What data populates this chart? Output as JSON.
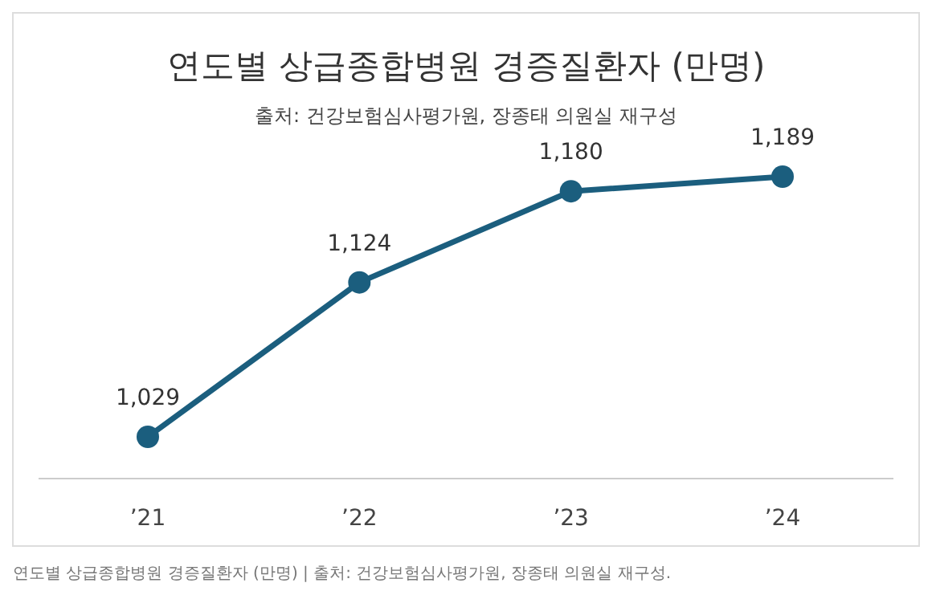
{
  "chart_data": {
    "type": "line",
    "title": "연도별 상급종합병원 경증질환자 (만명)",
    "subtitle": "출처: 건강보험심사평가원, 장종태 의원실 재구성",
    "categories": [
      "’21",
      "’22",
      "’23",
      "’24"
    ],
    "series": [
      {
        "color": "#1b5e7e",
        "values": [
          1029,
          1124,
          1180,
          1189
        ],
        "value_labels": [
          "1,029",
          "1,124",
          "1,180",
          "1,189"
        ]
      }
    ],
    "marker": "circle",
    "annotations": [
      "연도별 상급종합병원 경증질환자 (만명) | 출처: 건강보험심사평가원, 장종태 의원실 재구성."
    ]
  }
}
